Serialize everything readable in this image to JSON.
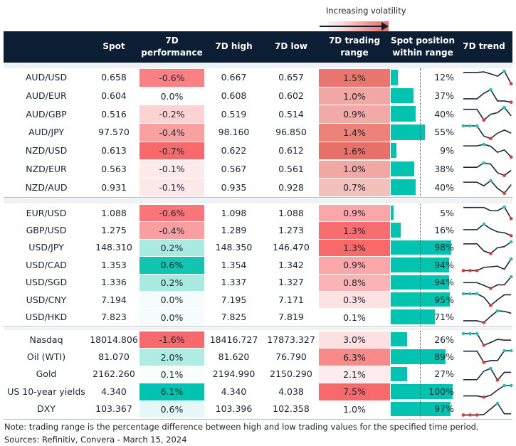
{
  "legend": {
    "label": "Increasing volatility"
  },
  "header": {
    "columns": [
      "",
      "Spot",
      "7D\nperformance",
      "7D high",
      "7D low",
      "7D trading\nrange",
      "Spot position\nwithin range",
      "7D trend"
    ]
  },
  "colors": {
    "header_bg": "#0b1e33",
    "bar": "#00c4b0",
    "max_marker": "#1cc6b3",
    "min_marker": "#e8322b",
    "sparkline": "#1a2a3a"
  },
  "groups": [
    {
      "rows": [
        {
          "name": "AUD/USD",
          "spot": "0.658",
          "perf": "-0.6%",
          "perf_color": "#f98083",
          "high": "0.667",
          "low": "0.657",
          "range": "1.5%",
          "range_color": "#ea776f",
          "position": 12,
          "position_label": "12%",
          "trend": [
            0.9,
            0.9,
            0.9,
            0.94,
            0.78,
            0.6,
            1,
            0
          ]
        },
        {
          "name": "AUD/EUR",
          "spot": "0.604",
          "perf": "0.0%",
          "perf_color": "#ffffff",
          "high": "0.608",
          "low": "0.602",
          "range": "1.0%",
          "range_color": "#f1a7a2",
          "position": 37,
          "position_label": "37%",
          "trend": [
            0.27,
            0.27,
            0.27,
            0.71,
            1,
            0.1,
            0.1,
            0
          ]
        },
        {
          "name": "AUD/GBP",
          "spot": "0.516",
          "perf": "-0.2%",
          "perf_color": "#fdd2d3",
          "high": "0.519",
          "low": "0.514",
          "range": "0.9%",
          "range_color": "#f1aaa6",
          "position": 40,
          "position_label": "40%",
          "trend": [
            0.85,
            0.85,
            0.85,
            0,
            0.46,
            0.58,
            1,
            0.33
          ]
        },
        {
          "name": "AUD/JPY",
          "spot": "97.570",
          "perf": "-0.4%",
          "perf_color": "#faa0a1",
          "high": "98.160",
          "low": "96.850",
          "range": "1.4%",
          "range_color": "#ec827a",
          "position": 55,
          "position_label": "55%",
          "trend": [
            1,
            1,
            1,
            0.19,
            0,
            0.42,
            0.67,
            0.42
          ]
        },
        {
          "name": "NZD/USD",
          "spot": "0.613",
          "perf": "-0.7%",
          "perf_color": "#f8696b",
          "high": "0.622",
          "low": "0.612",
          "range": "1.6%",
          "range_color": "#e8706a",
          "position": 9,
          "position_label": "9%",
          "trend": [
            0.88,
            0.88,
            0.88,
            1,
            0.85,
            0.37,
            0.56,
            0
          ]
        },
        {
          "name": "NZD/EUR",
          "spot": "0.563",
          "perf": "-0.1%",
          "perf_color": "#fdebeb",
          "high": "0.567",
          "low": "0.561",
          "range": "1.0%",
          "range_color": "#f1a7a2",
          "position": 38,
          "position_label": "38%",
          "trend": [
            0.65,
            0.65,
            0.65,
            1,
            0.9,
            0.22,
            0,
            0.41
          ]
        },
        {
          "name": "NZD/AUD",
          "spot": "0.931",
          "perf": "-0.1%",
          "perf_color": "#fde8e9",
          "high": "0.935",
          "low": "0.928",
          "range": "0.7%",
          "range_color": "#f4c0bc",
          "position": 40,
          "position_label": "40%",
          "trend": [
            0.88,
            0.88,
            0.88,
            0.59,
            1,
            0.39,
            0,
            0.69
          ]
        }
      ]
    },
    {
      "rows": [
        {
          "name": "EUR/USD",
          "spot": "1.088",
          "perf": "-0.6%",
          "perf_color": "#f97577",
          "high": "1.098",
          "low": "1.088",
          "range": "0.9%",
          "range_color": "#fba6a8",
          "position": 5,
          "position_label": "5%",
          "trend": [
            0.96,
            0.96,
            0.96,
            0.96,
            0.68,
            0.68,
            1,
            0
          ]
        },
        {
          "name": "GBP/USD",
          "spot": "1.275",
          "perf": "-0.4%",
          "perf_color": "#fa9fa1",
          "high": "1.289",
          "low": "1.273",
          "range": "1.3%",
          "range_color": "#f86d6f",
          "position": 16,
          "position_label": "16%",
          "trend": [
            0.52,
            0.52,
            0.52,
            1,
            0.59,
            0.33,
            0.26,
            0
          ]
        },
        {
          "name": "USD/JPY",
          "spot": "148.310",
          "perf": "0.2%",
          "perf_color": "#a9ebe3",
          "high": "148.350",
          "low": "146.470",
          "range": "1.3%",
          "range_color": "#f8696b",
          "position": 98,
          "position_label": "98%",
          "trend": [
            0.83,
            0.83,
            0.83,
            0.22,
            0,
            0.5,
            0.59,
            1
          ]
        },
        {
          "name": "USD/CAD",
          "spot": "1.353",
          "perf": "0.6%",
          "perf_color": "#13c4b0",
          "high": "1.354",
          "low": "1.342",
          "range": "0.9%",
          "range_color": "#fba6a8",
          "position": 94,
          "position_label": "94%",
          "trend": [
            0,
            0,
            0,
            0.27,
            0.33,
            0.38,
            0.11,
            1
          ]
        },
        {
          "name": "USD/SGD",
          "spot": "1.336",
          "perf": "0.2%",
          "perf_color": "#a9ebe3",
          "high": "1.337",
          "low": "1.327",
          "range": "0.8%",
          "range_color": "#fbb4b5",
          "position": 94,
          "position_label": "94%",
          "trend": [
            0.49,
            0.49,
            0.49,
            0.26,
            0,
            0.3,
            0.3,
            1
          ]
        },
        {
          "name": "USD/CNY",
          "spot": "7.194",
          "perf": "0.0%",
          "perf_color": "#f5fcfb",
          "high": "7.195",
          "low": "7.171",
          "range": "0.3%",
          "range_color": "#fde2e3",
          "position": 95,
          "position_label": "95%",
          "trend": [
            1,
            1,
            1,
            0.7,
            0,
            0.48,
            0.91,
            0.91
          ]
        },
        {
          "name": "USD/HKD",
          "spot": "7.823",
          "perf": "0.0%",
          "perf_color": "#f5fcfb",
          "high": "7.825",
          "low": "7.819",
          "range": "0.1%",
          "range_color": "#ffffff",
          "position": 71,
          "position_label": "71%",
          "trend": [
            0.15,
            0.15,
            0.15,
            0,
            0.53,
            1,
            0.96,
            0.79
          ]
        }
      ]
    },
    {
      "rows": [
        {
          "name": "Nasdaq",
          "spot": "18014.806",
          "perf": "-1.6%",
          "perf_color": "#f8696b",
          "high": "18416.727",
          "low": "17873.327",
          "range": "3.0%",
          "range_color": "#fde0e1",
          "position": 26,
          "position_label": "26%",
          "trend": [
            1,
            1,
            1,
            0,
            0.24,
            0.51,
            0.44,
            0.44
          ]
        },
        {
          "name": "Oil (WTI)",
          "spot": "81.070",
          "perf": "2.0%",
          "perf_color": "#aeece4",
          "high": "81.620",
          "low": "76.790",
          "range": "6.3%",
          "range_color": "#f98a8c",
          "position": 89,
          "position_label": "89%",
          "trend": [
            0.96,
            0.96,
            0.96,
            0,
            0.15,
            0.15,
            1,
            1
          ]
        },
        {
          "name": "Gold",
          "spot": "2162.260",
          "perf": "0.1%",
          "perf_color": "#f9fefd",
          "high": "2194.990",
          "low": "2150.290",
          "range": "2.1%",
          "range_color": "#fdeced",
          "position": 27,
          "position_label": "27%",
          "trend": [
            0.04,
            0.04,
            0.04,
            0.77,
            1,
            0,
            0.67,
            0.67
          ]
        },
        {
          "name": "US 10-year yields",
          "spot": "4.340",
          "perf": "6.1%",
          "perf_color": "#00c4b0",
          "high": "4.340",
          "low": "4.038",
          "range": "7.5%",
          "range_color": "#f8696b",
          "position": 100,
          "position_label": "100%",
          "trend": [
            0.11,
            0.11,
            0.11,
            0,
            0.17,
            0.61,
            1,
            1
          ]
        },
        {
          "name": "DXY",
          "spot": "103.367",
          "perf": "0.6%",
          "perf_color": "#e6f8f5",
          "high": "103.396",
          "low": "102.358",
          "range": "1.0%",
          "range_color": "#ffffff",
          "position": 97,
          "position_label": "97%",
          "trend": [
            0,
            0,
            0,
            0.04,
            0.52,
            1,
            0.1,
            0.1
          ]
        }
      ]
    }
  ],
  "notes": {
    "note": "Note: trading range is the percentage difference between high and low trading values for the specified time period.",
    "sources": "Sources: Refinitiv, Convera - March 15, 2024"
  }
}
